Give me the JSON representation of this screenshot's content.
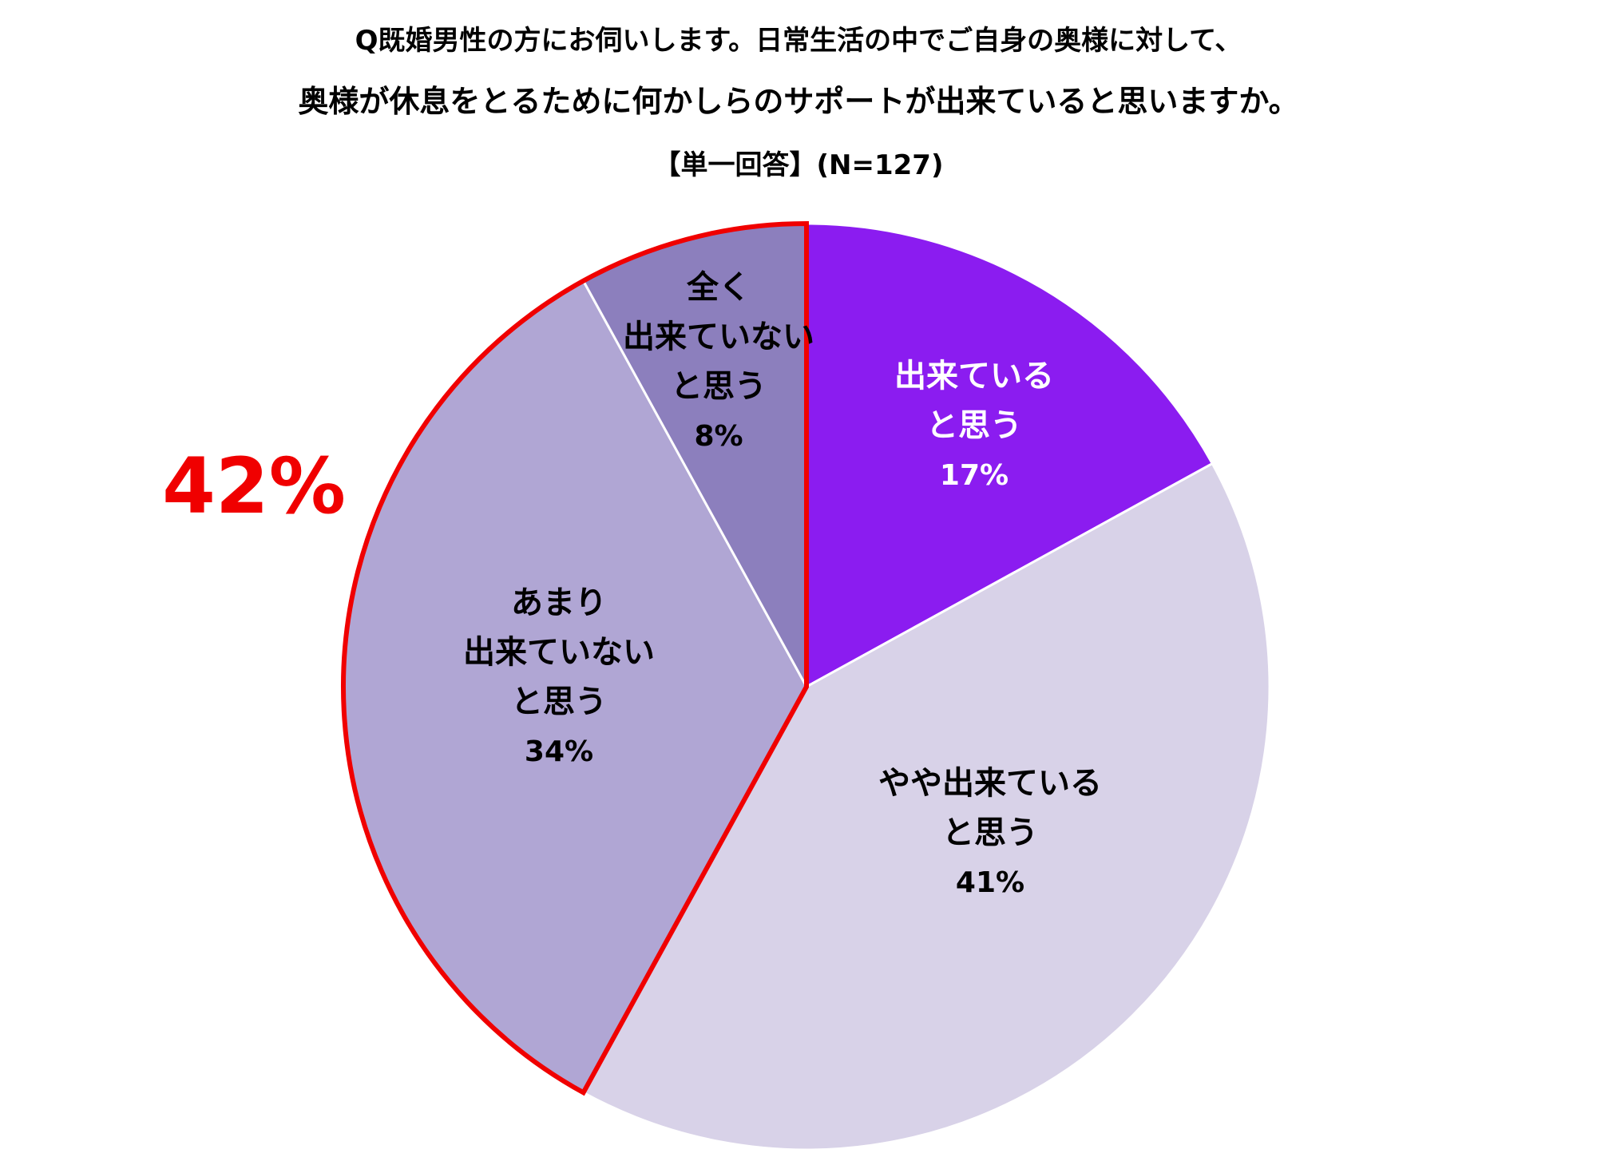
{
  "chart_data": {
    "type": "pie",
    "title": [
      "Q既婚男性の方にお伺いします。日常生活の中でご自身の奥様に対して、",
      "奥様が休息をとるために何かしらのサポートが出来ていると思いますか。",
      "【単一回答】(N=127)"
    ],
    "slices": [
      {
        "label": [
          "出来ている",
          "と思う"
        ],
        "value": 17,
        "value_label": "17%",
        "color": "#8b1cf0",
        "text_color": "#ffffff"
      },
      {
        "label": [
          "やや出来ている",
          "と思う"
        ],
        "value": 41,
        "value_label": "41%",
        "color": "#d8d2e8",
        "text_color": "#000000"
      },
      {
        "label": [
          "あまり",
          "出来ていない",
          "と思う"
        ],
        "value": 34,
        "value_label": "34%",
        "color": "#b0a6d4",
        "text_color": "#000000"
      },
      {
        "label": [
          "全く",
          "出来ていない",
          "と思う"
        ],
        "value": 8,
        "value_label": "8%",
        "color": "#8c7fbd",
        "text_color": "#000000"
      }
    ],
    "start_angle_deg": 0,
    "direction": "clockwise",
    "highlight": {
      "slices": [
        2,
        3
      ],
      "label": "42%",
      "color": "#f00000"
    }
  }
}
